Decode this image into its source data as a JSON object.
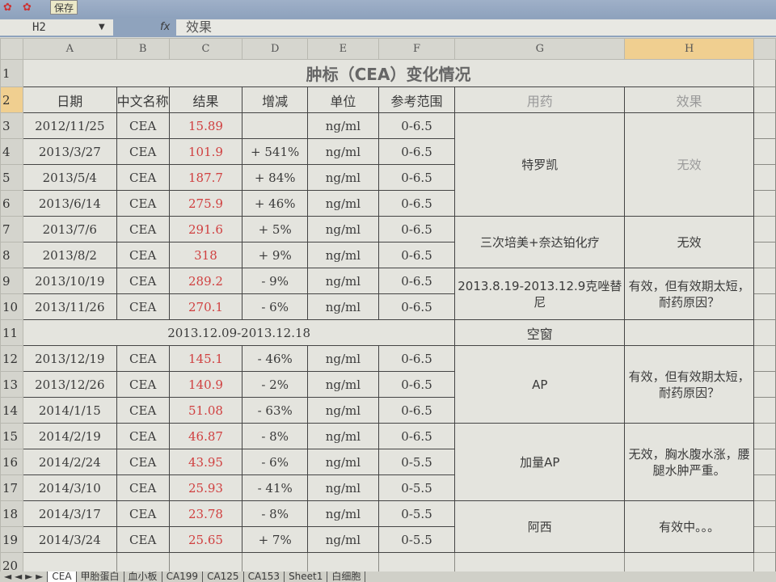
{
  "toolbar": {
    "save_label": "保存"
  },
  "formula_bar": {
    "cell_ref": "H2",
    "fx": "fx",
    "content": "效果"
  },
  "columns": [
    "A",
    "B",
    "C",
    "D",
    "E",
    "F",
    "G",
    "H"
  ],
  "title": "肿标（CEA）变化情况",
  "headers": [
    "日期",
    "中文名称",
    "结果",
    "增减",
    "单位",
    "参考范围",
    "用药",
    "效果"
  ],
  "rows": [
    {
      "n": "3",
      "date": "2012/11/25",
      "name": "CEA",
      "result": "15.89",
      "change": "",
      "unit": "ng/ml",
      "range": "0-6.5"
    },
    {
      "n": "4",
      "date": "2013/3/27",
      "name": "CEA",
      "result": "101.9",
      "change": "+ 541%",
      "unit": "ng/ml",
      "range": "0-6.5"
    },
    {
      "n": "5",
      "date": "2013/5/4",
      "name": "CEA",
      "result": "187.7",
      "change": "+ 84%",
      "unit": "ng/ml",
      "range": "0-6.5"
    },
    {
      "n": "6",
      "date": "2013/6/14",
      "name": "CEA",
      "result": "275.9",
      "change": "+ 46%",
      "unit": "ng/ml",
      "range": "0-6.5"
    },
    {
      "n": "7",
      "date": "2013/7/6",
      "name": "CEA",
      "result": "291.6",
      "change": "+ 5%",
      "unit": "ng/ml",
      "range": "0-6.5"
    },
    {
      "n": "8",
      "date": "2013/8/2",
      "name": "CEA",
      "result": "318",
      "change": "+ 9%",
      "unit": "ng/ml",
      "range": "0-6.5"
    },
    {
      "n": "9",
      "date": "2013/10/19",
      "name": "CEA",
      "result": "289.2",
      "change": "- 9%",
      "unit": "ng/ml",
      "range": "0-6.5"
    },
    {
      "n": "10",
      "date": "2013/11/26",
      "name": "CEA",
      "result": "270.1",
      "change": "- 6%",
      "unit": "ng/ml",
      "range": "0-6.5"
    },
    {
      "n": "12",
      "date": "2013/12/19",
      "name": "CEA",
      "result": "145.1",
      "change": "- 46%",
      "unit": "ng/ml",
      "range": "0-6.5"
    },
    {
      "n": "13",
      "date": "2013/12/26",
      "name": "CEA",
      "result": "140.9",
      "change": "- 2%",
      "unit": "ng/ml",
      "range": "0-6.5"
    },
    {
      "n": "14",
      "date": "2014/1/15",
      "name": "CEA",
      "result": "51.08",
      "change": "- 63%",
      "unit": "ng/ml",
      "range": "0-6.5"
    },
    {
      "n": "15",
      "date": "2014/2/19",
      "name": "CEA",
      "result": "46.87",
      "change": "- 8%",
      "unit": "ng/ml",
      "range": "0-6.5"
    },
    {
      "n": "16",
      "date": "2014/2/24",
      "name": "CEA",
      "result": "43.95",
      "change": "- 6%",
      "unit": "ng/ml",
      "range": "0-5.5"
    },
    {
      "n": "17",
      "date": "2014/3/10",
      "name": "CEA",
      "result": "25.93",
      "change": "- 41%",
      "unit": "ng/ml",
      "range": "0-5.5"
    },
    {
      "n": "18",
      "date": "2014/3/17",
      "name": "CEA",
      "result": "23.78",
      "change": "- 8%",
      "unit": "ng/ml",
      "range": "0-5.5"
    },
    {
      "n": "19",
      "date": "2014/3/24",
      "name": "CEA",
      "result": "25.65",
      "change": "+ 7%",
      "unit": "ng/ml",
      "range": "0-5.5"
    }
  ],
  "gap_row": {
    "n": "11",
    "label": "2013.12.09-2013.12.18",
    "drug": "空窗",
    "effect": ""
  },
  "groups": [
    {
      "drug": "特罗凯",
      "effect": "无效"
    },
    {
      "drug": "三次培美+奈达铂化疗",
      "effect": "无效"
    },
    {
      "drug": "2013.8.19-2013.12.9克唑替尼",
      "effect": "有效，但有效期太短，耐药原因？"
    },
    {
      "drug": "AP",
      "effect": "有效，但有效期太短，耐药原因？"
    },
    {
      "drug": "加量AP",
      "effect": "无效，胸水腹水涨，腰腿水肿严重。"
    },
    {
      "drug": "阿西",
      "effect": "有效中。。。"
    }
  ],
  "sheet_tabs": [
    "CEA",
    "甲胎蛋白",
    "血小板",
    "CA199",
    "CA125",
    "CA153",
    "Sheet1",
    "白细胞"
  ],
  "row_labels": {
    "r1": "1",
    "r2": "2",
    "r20": "20"
  }
}
